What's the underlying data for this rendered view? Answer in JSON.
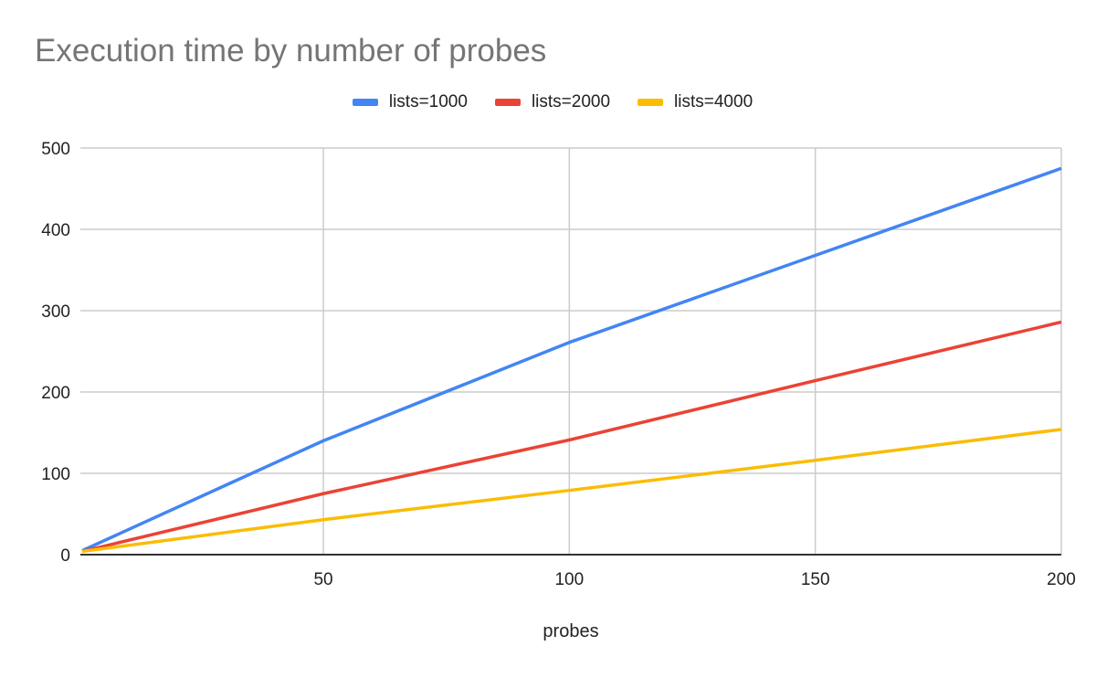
{
  "chart_data": {
    "type": "line",
    "title": "Execution time by number of probes",
    "xlabel": "probes",
    "ylabel": "",
    "xlim": [
      1,
      200
    ],
    "ylim": [
      0,
      500
    ],
    "x_ticks": [
      50,
      100,
      150,
      200
    ],
    "y_ticks": [
      0,
      100,
      200,
      300,
      400,
      500
    ],
    "grid": true,
    "legend": "top",
    "x": [
      1,
      50,
      100,
      150,
      200
    ],
    "series": [
      {
        "name": "lists=1000",
        "color": "#4285f4",
        "values": [
          5,
          140,
          261,
          368,
          475
        ]
      },
      {
        "name": "lists=2000",
        "color": "#ea4335",
        "values": [
          4,
          75,
          141,
          214,
          286
        ]
      },
      {
        "name": "lists=4000",
        "color": "#fbbc04",
        "values": [
          4,
          43,
          79,
          116,
          154
        ]
      }
    ]
  }
}
